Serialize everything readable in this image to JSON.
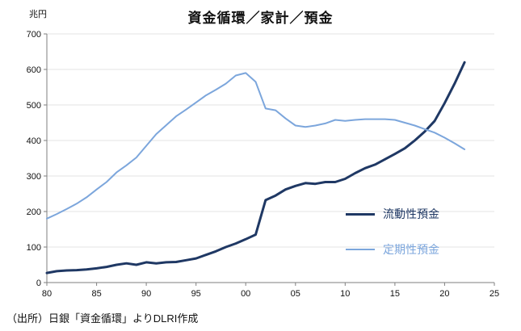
{
  "chart_data": {
    "type": "line",
    "title": "資金循環／家計／預金",
    "ylabel": "兆円",
    "xlabel": "",
    "xlim": [
      1980,
      2025
    ],
    "ylim": [
      0,
      700
    ],
    "yticks": [
      0,
      100,
      200,
      300,
      400,
      500,
      600,
      700
    ],
    "xticks": [
      {
        "label": "80",
        "value": 1980
      },
      {
        "label": "85",
        "value": 1985
      },
      {
        "label": "90",
        "value": 1990
      },
      {
        "label": "95",
        "value": 1995
      },
      {
        "label": "00",
        "value": 2000
      },
      {
        "label": "05",
        "value": 2005
      },
      {
        "label": "10",
        "value": 2010
      },
      {
        "label": "15",
        "value": 2015
      },
      {
        "label": "20",
        "value": 2020
      },
      {
        "label": "25",
        "value": 2025
      }
    ],
    "grid_on": true,
    "grid_color": "#e3e3e3",
    "axis_color": "#7f7f7f",
    "legend_position": "inside-right-lower",
    "x": [
      1980,
      1981,
      1982,
      1983,
      1984,
      1985,
      1986,
      1987,
      1988,
      1989,
      1990,
      1991,
      1992,
      1993,
      1994,
      1995,
      1996,
      1997,
      1998,
      1999,
      2000,
      2001,
      2002,
      2003,
      2004,
      2005,
      2006,
      2007,
      2008,
      2009,
      2010,
      2011,
      2012,
      2013,
      2014,
      2015,
      2016,
      2017,
      2018,
      2019,
      2020,
      2021,
      2022
    ],
    "series": [
      {
        "name": "流動性預金",
        "color": "#1F3864",
        "width": 3,
        "values": [
          27,
          32,
          34,
          35,
          37,
          40,
          44,
          50,
          54,
          50,
          57,
          54,
          57,
          58,
          63,
          68,
          78,
          88,
          100,
          110,
          122,
          135,
          232,
          245,
          262,
          272,
          280,
          278,
          283,
          283,
          292,
          308,
          322,
          332,
          347,
          362,
          378,
          400,
          425,
          455,
          505,
          560,
          620
        ]
      },
      {
        "name": "定期性預金",
        "color": "#7CA6DC",
        "width": 2,
        "values": [
          180,
          193,
          207,
          222,
          240,
          262,
          283,
          310,
          330,
          352,
          385,
          418,
          443,
          468,
          487,
          507,
          527,
          543,
          560,
          583,
          590,
          565,
          490,
          485,
          462,
          442,
          438,
          442,
          448,
          458,
          455,
          458,
          460,
          460,
          460,
          458,
          450,
          442,
          432,
          422,
          408,
          392,
          375
        ]
      }
    ]
  },
  "footer": {
    "source": "（出所）日銀「資金循環」よりDLRI作成"
  }
}
